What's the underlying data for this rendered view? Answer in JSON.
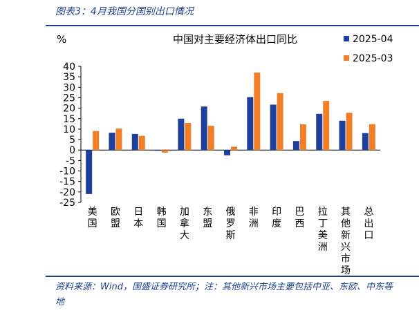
{
  "figure": {
    "title": "图表3：4月我国分国别出口情况",
    "source": "资料来源：Wind，国盛证券研究所；注：其他新兴市场主要包括中亚、东欧、中东等地"
  },
  "chart_data": {
    "type": "bar",
    "title": "中国对主要经济体出口同比",
    "ylabel": "%",
    "xlabel": "",
    "ylim": [
      -25,
      40
    ],
    "yticks": [
      40,
      35,
      30,
      25,
      20,
      15,
      10,
      5,
      0,
      -5,
      -10,
      -15,
      -20,
      -25
    ],
    "grid": false,
    "legend_position": "top-right",
    "categories": [
      "美国",
      "欧盟",
      "日本",
      "韩国",
      "加拿大",
      "东盟",
      "俄罗斯",
      "非洲",
      "印度",
      "巴西",
      "拉丁美洲",
      "其他新兴市场",
      "总出口"
    ],
    "series": [
      {
        "name": "2025-04",
        "color": "#1f3f9c",
        "values": [
          -21.0,
          8.3,
          7.7,
          -0.3,
          15.0,
          20.8,
          -2.5,
          25.3,
          21.7,
          4.3,
          17.3,
          14.0,
          8.1
        ]
      },
      {
        "name": "2025-03",
        "color": "#f07f28",
        "values": [
          9.1,
          10.3,
          6.8,
          -1.2,
          13.0,
          11.6,
          1.6,
          37.0,
          27.2,
          12.3,
          23.5,
          17.8,
          12.4
        ]
      }
    ]
  }
}
